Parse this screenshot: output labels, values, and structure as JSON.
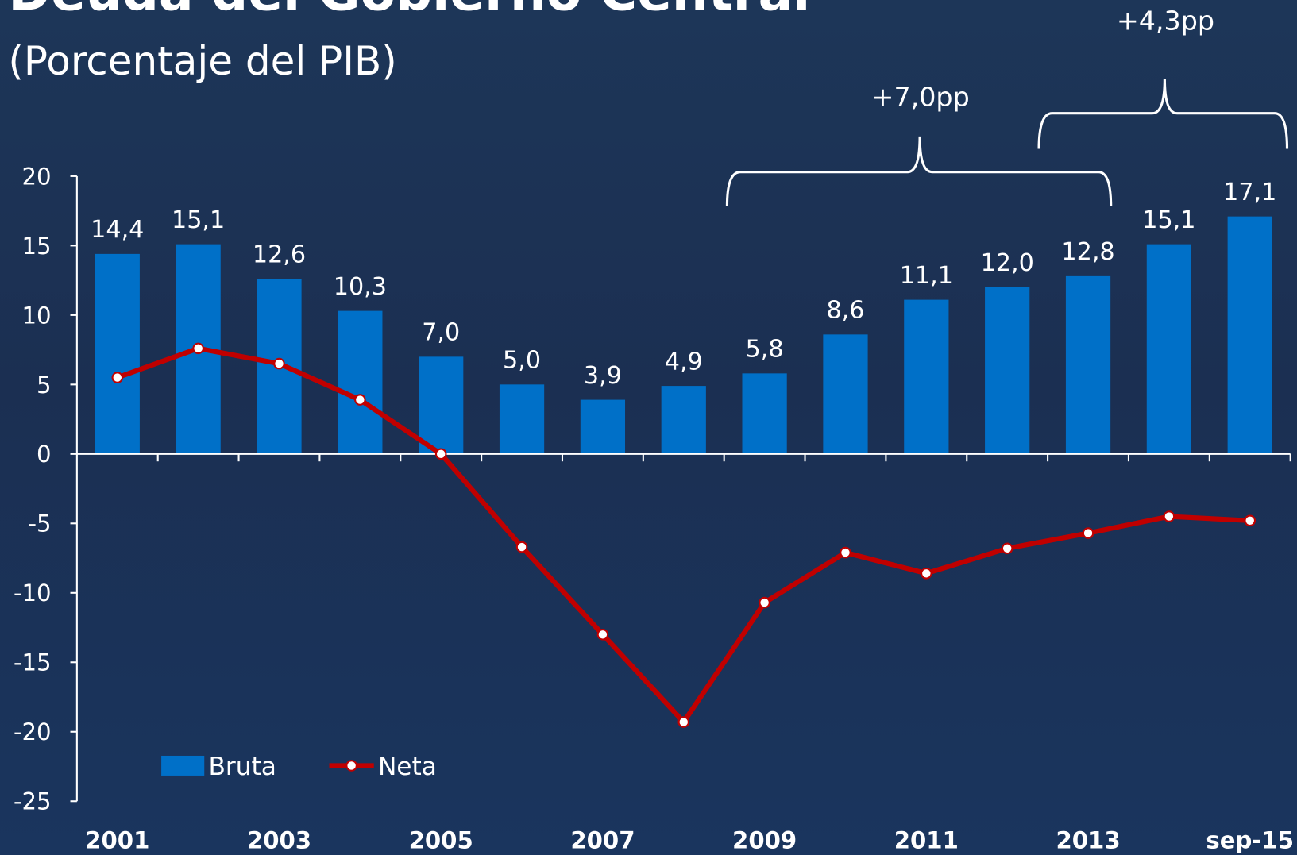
{
  "chart_data": {
    "type": "bar_line",
    "title": "Deuda del Gobierno Central",
    "subtitle": "(Porcentaje del PIB)",
    "categories": [
      "2001",
      null,
      "2003",
      null,
      "2005",
      null,
      "2007",
      null,
      "2009",
      null,
      "2011",
      null,
      "2013",
      null,
      "sep-15"
    ],
    "series": [
      {
        "name": "Bruta",
        "type": "bar",
        "color": "#0070c8",
        "values": [
          14.4,
          15.1,
          12.6,
          10.3,
          7.0,
          5.0,
          3.9,
          4.9,
          5.8,
          8.6,
          11.1,
          12.0,
          12.8,
          15.1,
          17.1
        ],
        "value_labels": [
          "14,4",
          "15,1",
          "12,6",
          "10,3",
          "7,0",
          "5,0",
          "3,9",
          "4,9",
          "5,8",
          "8,6",
          "11,1",
          "12,0",
          "12,8",
          "15,1",
          "17,1"
        ]
      },
      {
        "name": "Neta",
        "type": "line",
        "color": "#c00000",
        "values": [
          5.5,
          7.6,
          6.5,
          3.9,
          0,
          -6.7,
          -13.0,
          -19.3,
          -10.7,
          -7.1,
          -8.6,
          -6.8,
          -5.7,
          -4.5,
          -4.8
        ]
      }
    ],
    "ylim": [
      -25,
      20
    ],
    "yticks": [
      -25,
      -20,
      -15,
      -10,
      -5,
      0,
      5,
      10,
      15,
      20
    ],
    "legend": "lower left",
    "annotations": [
      "+7,0pp",
      "+4,3pp"
    ]
  }
}
